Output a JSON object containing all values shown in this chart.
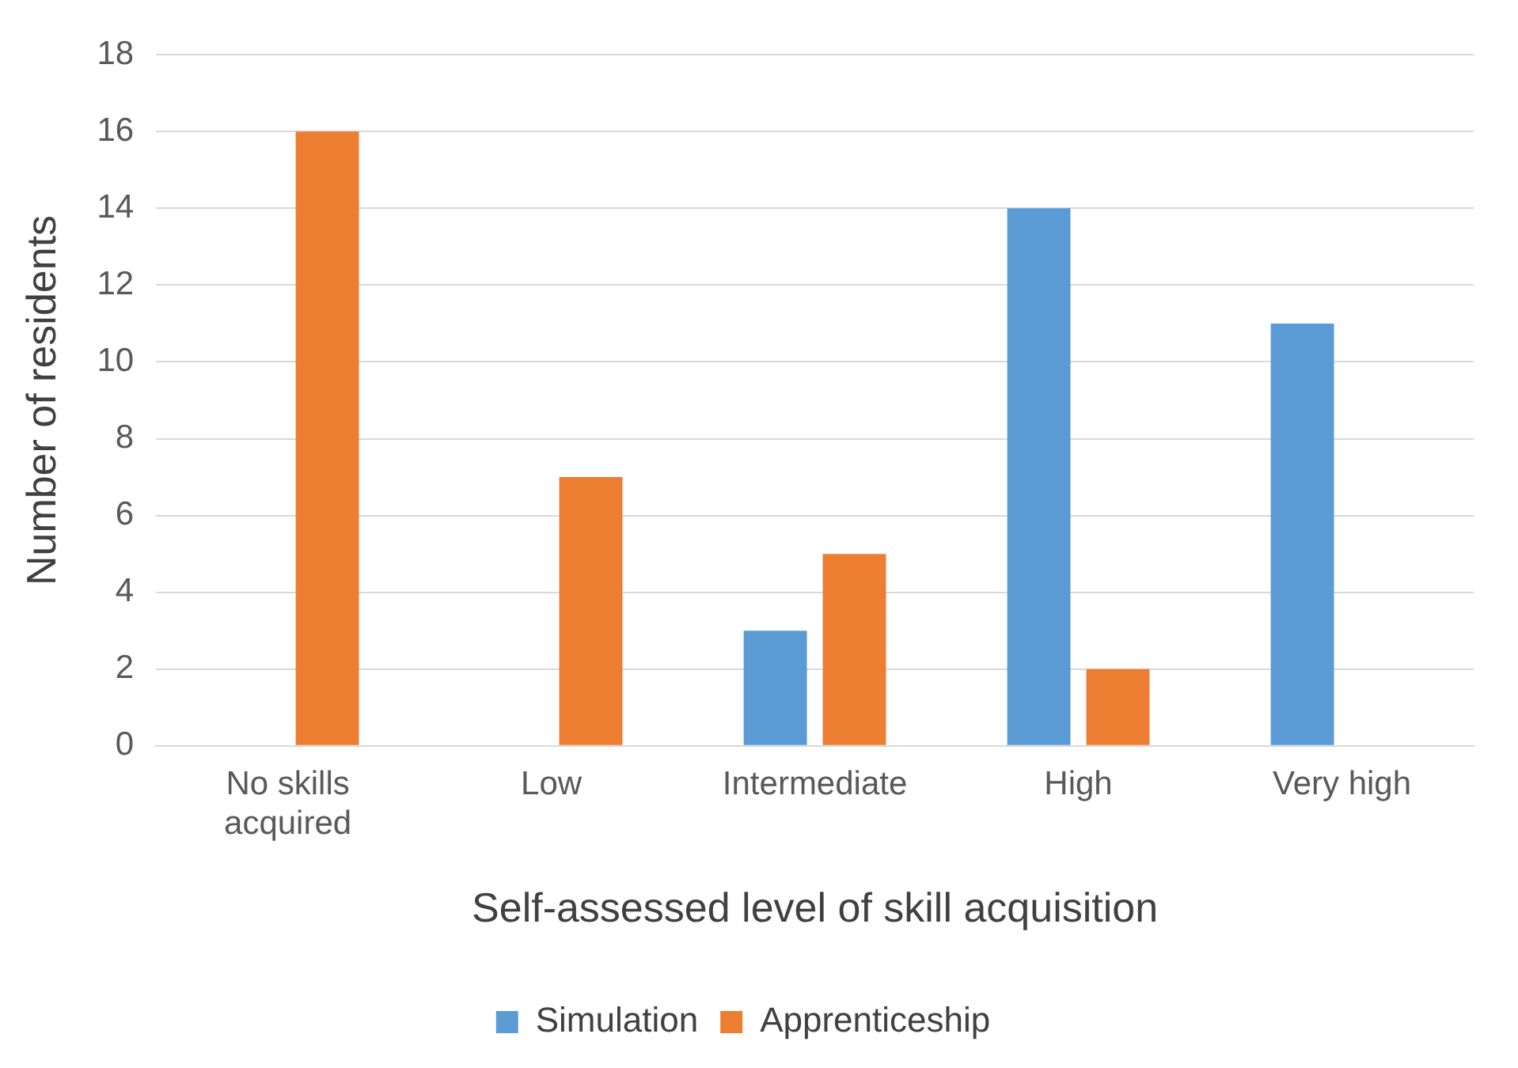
{
  "chart_data": {
    "type": "bar",
    "xlabel": "Self-assessed level of skill acquisition",
    "ylabel": "Number of residents",
    "categories": [
      "No skills acquired",
      "Low",
      "Intermediate",
      "High",
      "Very high"
    ],
    "series": [
      {
        "name": "Simulation",
        "color": "#5b9bd5",
        "values": [
          0,
          0,
          3,
          14,
          11
        ]
      },
      {
        "name": "Apprenticeship",
        "color": "#ed7d31",
        "values": [
          16,
          7,
          5,
          2,
          0
        ]
      }
    ],
    "ylim": [
      0,
      18
    ],
    "yticks": [
      0,
      2,
      4,
      6,
      8,
      10,
      12,
      14,
      16,
      18
    ],
    "grid": "y",
    "legend": "bottom"
  }
}
